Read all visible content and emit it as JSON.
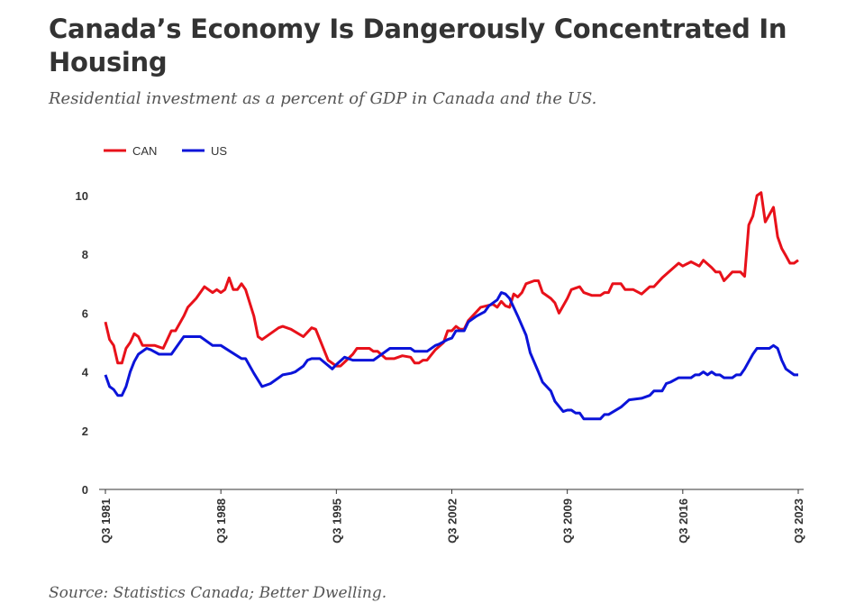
{
  "header": {
    "title": "Canada’s Economy Is Dangerously Concentrated In Housing",
    "subtitle": "Residential investment as a percent of GDP in Canada and the US.",
    "source": "Source: Statistics Canada; Better Dwelling."
  },
  "chart_data": {
    "type": "line",
    "title": "Canada’s Economy Is Dangerously Concentrated In Housing",
    "xlabel": "",
    "ylabel": "",
    "x_unit": "quarters since Q3 1981",
    "xlim": [
      0,
      168
    ],
    "ylim": [
      0,
      10
    ],
    "yticks": [
      0,
      2,
      4,
      6,
      8,
      10
    ],
    "xticks": [
      {
        "q": 0,
        "label": "Q3 1981"
      },
      {
        "q": 28,
        "label": "Q3 1988"
      },
      {
        "q": 56,
        "label": "Q3 1995"
      },
      {
        "q": 84,
        "label": "Q3 2002"
      },
      {
        "q": 112,
        "label": "Q3 2009"
      },
      {
        "q": 140,
        "label": "Q3 2016"
      },
      {
        "q": 168,
        "label": "Q3 2023"
      }
    ],
    "legend_position": "top-left",
    "grid": false,
    "series": [
      {
        "name": "CAN",
        "color": "#e8111a",
        "points": [
          [
            0,
            5.7
          ],
          [
            1,
            5.1
          ],
          [
            2,
            4.9
          ],
          [
            3,
            4.3
          ],
          [
            4,
            4.3
          ],
          [
            5,
            4.8
          ],
          [
            6,
            5.0
          ],
          [
            7,
            5.3
          ],
          [
            8,
            5.2
          ],
          [
            9,
            4.9
          ],
          [
            10,
            4.9
          ],
          [
            12,
            4.9
          ],
          [
            13,
            4.85
          ],
          [
            14,
            4.8
          ],
          [
            15,
            5.1
          ],
          [
            16,
            5.4
          ],
          [
            17,
            5.4
          ],
          [
            19,
            5.9
          ],
          [
            20,
            6.2
          ],
          [
            22,
            6.5
          ],
          [
            24,
            6.9
          ],
          [
            26,
            6.7
          ],
          [
            27,
            6.8
          ],
          [
            28,
            6.7
          ],
          [
            29,
            6.8
          ],
          [
            30,
            7.2
          ],
          [
            31,
            6.8
          ],
          [
            32,
            6.8
          ],
          [
            33,
            7.0
          ],
          [
            34,
            6.8
          ],
          [
            36,
            5.9
          ],
          [
            37,
            5.2
          ],
          [
            38,
            5.1
          ],
          [
            40,
            5.3
          ],
          [
            42,
            5.5
          ],
          [
            43,
            5.55
          ],
          [
            45,
            5.45
          ],
          [
            48,
            5.2
          ],
          [
            50,
            5.5
          ],
          [
            51,
            5.45
          ],
          [
            52,
            5.1
          ],
          [
            54,
            4.4
          ],
          [
            56,
            4.2
          ],
          [
            57,
            4.2
          ],
          [
            60,
            4.6
          ],
          [
            61,
            4.8
          ],
          [
            64,
            4.8
          ],
          [
            65,
            4.7
          ],
          [
            66,
            4.7
          ],
          [
            68,
            4.45
          ],
          [
            70,
            4.45
          ],
          [
            72,
            4.55
          ],
          [
            74,
            4.5
          ],
          [
            75,
            4.3
          ],
          [
            76,
            4.3
          ],
          [
            77,
            4.4
          ],
          [
            78,
            4.4
          ],
          [
            80,
            4.75
          ],
          [
            82,
            5.0
          ],
          [
            83,
            5.4
          ],
          [
            84,
            5.4
          ],
          [
            85,
            5.55
          ],
          [
            86,
            5.45
          ],
          [
            87,
            5.45
          ],
          [
            88,
            5.75
          ],
          [
            90,
            6.05
          ],
          [
            91,
            6.2
          ],
          [
            94,
            6.3
          ],
          [
            95,
            6.2
          ],
          [
            96,
            6.4
          ],
          [
            97,
            6.25
          ],
          [
            98,
            6.2
          ],
          [
            99,
            6.65
          ],
          [
            100,
            6.55
          ],
          [
            101,
            6.7
          ],
          [
            102,
            7.0
          ],
          [
            104,
            7.1
          ],
          [
            105,
            7.1
          ],
          [
            106,
            6.7
          ],
          [
            108,
            6.5
          ],
          [
            109,
            6.35
          ],
          [
            110,
            6.0
          ],
          [
            112,
            6.5
          ],
          [
            113,
            6.8
          ],
          [
            115,
            6.9
          ],
          [
            116,
            6.7
          ],
          [
            118,
            6.6
          ],
          [
            120,
            6.6
          ],
          [
            121,
            6.7
          ],
          [
            122,
            6.7
          ],
          [
            123,
            7.0
          ],
          [
            125,
            7.0
          ],
          [
            126,
            6.8
          ],
          [
            128,
            6.8
          ],
          [
            130,
            6.65
          ],
          [
            132,
            6.9
          ],
          [
            133,
            6.9
          ],
          [
            135,
            7.2
          ],
          [
            137,
            7.45
          ],
          [
            139,
            7.7
          ],
          [
            140,
            7.6
          ],
          [
            142,
            7.75
          ],
          [
            144,
            7.6
          ],
          [
            145,
            7.8
          ],
          [
            147,
            7.55
          ],
          [
            148,
            7.4
          ],
          [
            149,
            7.4
          ],
          [
            150,
            7.1
          ],
          [
            152,
            7.4
          ],
          [
            154,
            7.4
          ],
          [
            155,
            7.25
          ],
          [
            156,
            9.0
          ],
          [
            157,
            9.3
          ],
          [
            158,
            10.0
          ],
          [
            159,
            10.1
          ],
          [
            160,
            9.1
          ],
          [
            162,
            9.6
          ],
          [
            163,
            8.6
          ],
          [
            164,
            8.2
          ],
          [
            165,
            7.95
          ],
          [
            166,
            7.7
          ],
          [
            167,
            7.7
          ],
          [
            168,
            7.8
          ]
        ]
      },
      {
        "name": "US",
        "color": "#0b14d9",
        "points": [
          [
            0,
            3.9
          ],
          [
            1,
            3.5
          ],
          [
            2,
            3.4
          ],
          [
            3,
            3.2
          ],
          [
            4,
            3.2
          ],
          [
            5,
            3.5
          ],
          [
            6,
            4.0
          ],
          [
            7,
            4.35
          ],
          [
            8,
            4.6
          ],
          [
            10,
            4.8
          ],
          [
            11,
            4.75
          ],
          [
            13,
            4.6
          ],
          [
            16,
            4.6
          ],
          [
            17,
            4.8
          ],
          [
            19,
            5.2
          ],
          [
            23,
            5.2
          ],
          [
            26,
            4.9
          ],
          [
            28,
            4.9
          ],
          [
            33,
            4.45
          ],
          [
            34,
            4.45
          ],
          [
            36,
            3.95
          ],
          [
            38,
            3.5
          ],
          [
            40,
            3.6
          ],
          [
            42,
            3.8
          ],
          [
            43,
            3.9
          ],
          [
            45,
            3.95
          ],
          [
            46,
            4.0
          ],
          [
            48,
            4.2
          ],
          [
            49,
            4.4
          ],
          [
            50,
            4.45
          ],
          [
            52,
            4.45
          ],
          [
            55,
            4.1
          ],
          [
            56,
            4.25
          ],
          [
            58,
            4.5
          ],
          [
            60,
            4.4
          ],
          [
            65,
            4.4
          ],
          [
            69,
            4.8
          ],
          [
            74,
            4.8
          ],
          [
            75,
            4.7
          ],
          [
            78,
            4.7
          ],
          [
            80,
            4.9
          ],
          [
            81,
            4.95
          ],
          [
            83,
            5.1
          ],
          [
            84,
            5.15
          ],
          [
            85,
            5.4
          ],
          [
            87,
            5.4
          ],
          [
            88,
            5.7
          ],
          [
            90,
            5.9
          ],
          [
            92,
            6.05
          ],
          [
            93,
            6.25
          ],
          [
            95,
            6.45
          ],
          [
            96,
            6.7
          ],
          [
            97,
            6.65
          ],
          [
            98,
            6.5
          ],
          [
            100,
            5.9
          ],
          [
            102,
            5.25
          ],
          [
            103,
            4.65
          ],
          [
            105,
            4.0
          ],
          [
            106,
            3.65
          ],
          [
            108,
            3.35
          ],
          [
            109,
            3.0
          ],
          [
            111,
            2.65
          ],
          [
            112,
            2.7
          ],
          [
            113,
            2.7
          ],
          [
            114,
            2.6
          ],
          [
            115,
            2.6
          ],
          [
            116,
            2.4
          ],
          [
            120,
            2.4
          ],
          [
            121,
            2.55
          ],
          [
            122,
            2.55
          ],
          [
            125,
            2.8
          ],
          [
            127,
            3.05
          ],
          [
            130,
            3.1
          ],
          [
            132,
            3.2
          ],
          [
            133,
            3.35
          ],
          [
            135,
            3.35
          ],
          [
            136,
            3.6
          ],
          [
            137,
            3.65
          ],
          [
            139,
            3.8
          ],
          [
            142,
            3.8
          ],
          [
            143,
            3.9
          ],
          [
            144,
            3.9
          ],
          [
            145,
            4.0
          ],
          [
            146,
            3.9
          ],
          [
            147,
            4.0
          ],
          [
            148,
            3.9
          ],
          [
            149,
            3.9
          ],
          [
            150,
            3.8
          ],
          [
            152,
            3.8
          ],
          [
            153,
            3.9
          ],
          [
            154,
            3.9
          ],
          [
            155,
            4.1
          ],
          [
            157,
            4.6
          ],
          [
            158,
            4.8
          ],
          [
            161,
            4.8
          ],
          [
            162,
            4.9
          ],
          [
            163,
            4.8
          ],
          [
            164,
            4.4
          ],
          [
            165,
            4.1
          ],
          [
            167,
            3.9
          ],
          [
            168,
            3.9
          ]
        ]
      }
    ]
  }
}
